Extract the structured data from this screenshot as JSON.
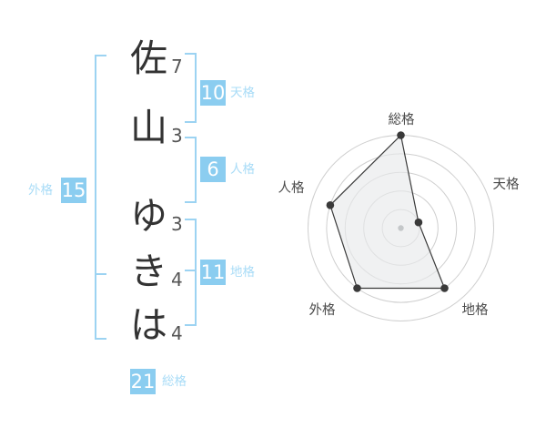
{
  "name_diagram": {
    "chars": [
      {
        "char": "佐",
        "strokes": "7"
      },
      {
        "char": "山",
        "strokes": "3"
      },
      {
        "char": "ゆ",
        "strokes": "3"
      },
      {
        "char": "き",
        "strokes": "4"
      },
      {
        "char": "は",
        "strokes": "4"
      }
    ],
    "badges": [
      {
        "id": "tenkaku",
        "value": "10",
        "label": "天格"
      },
      {
        "id": "jinkaku",
        "value": "6",
        "label": "人格"
      },
      {
        "id": "chikaku",
        "value": "11",
        "label": "地格"
      },
      {
        "id": "gaikaku",
        "value": "15",
        "label": "外格"
      },
      {
        "id": "soukaku",
        "value": "21",
        "label": "総格"
      }
    ]
  },
  "colors": {
    "accent_blue": "#8BCDF0",
    "bracket_blue": "#9CD3F2",
    "label_blue": "#A9DCF7",
    "text_dark": "#333333",
    "stroke_number_gray": "#555555",
    "chart_grid_gray": "#CFCFCF",
    "chart_line_dark": "#3A3A3A",
    "chart_fill_gray": "#E8EAEB",
    "chart_center_dot": "#C4C7C9",
    "chart_label_gray": "#4A4A4A"
  },
  "chart_data": {
    "type": "radar",
    "axes": [
      "総格",
      "天格",
      "地格",
      "外格",
      "人格"
    ],
    "values": [
      5,
      1,
      4,
      4,
      4
    ],
    "max": 5,
    "rings": 5,
    "grid": "concentric-circles",
    "legend": "none",
    "title": ""
  }
}
